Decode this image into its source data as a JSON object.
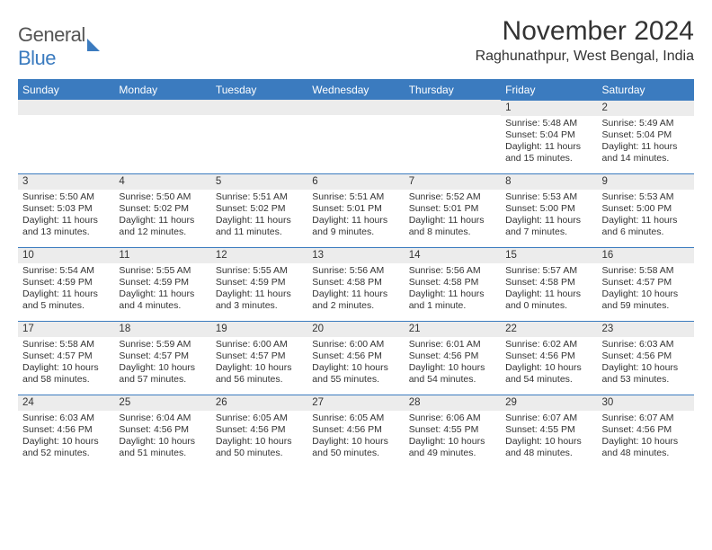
{
  "logo": {
    "part1": "General",
    "part2": "Blue"
  },
  "title": "November 2024",
  "subtitle": "Raghunathpur, West Bengal, India",
  "dayNames": [
    "Sunday",
    "Monday",
    "Tuesday",
    "Wednesday",
    "Thursday",
    "Friday",
    "Saturday"
  ],
  "colors": {
    "accent": "#3b7bbf",
    "headerRowBg": "#ececec",
    "text": "#333333",
    "background": "#ffffff"
  },
  "font": {
    "family": "Arial",
    "daynum_size": 11.5,
    "body_size": 10.5,
    "title_size": 30,
    "subtitle_size": 16
  },
  "weeks": [
    [
      {
        "n": "",
        "lines": []
      },
      {
        "n": "",
        "lines": []
      },
      {
        "n": "",
        "lines": []
      },
      {
        "n": "",
        "lines": []
      },
      {
        "n": "",
        "lines": []
      },
      {
        "n": "1",
        "lines": [
          "Sunrise: 5:48 AM",
          "Sunset: 5:04 PM",
          "Daylight: 11 hours",
          "and 15 minutes."
        ]
      },
      {
        "n": "2",
        "lines": [
          "Sunrise: 5:49 AM",
          "Sunset: 5:04 PM",
          "Daylight: 11 hours",
          "and 14 minutes."
        ]
      }
    ],
    [
      {
        "n": "3",
        "lines": [
          "Sunrise: 5:50 AM",
          "Sunset: 5:03 PM",
          "Daylight: 11 hours",
          "and 13 minutes."
        ]
      },
      {
        "n": "4",
        "lines": [
          "Sunrise: 5:50 AM",
          "Sunset: 5:02 PM",
          "Daylight: 11 hours",
          "and 12 minutes."
        ]
      },
      {
        "n": "5",
        "lines": [
          "Sunrise: 5:51 AM",
          "Sunset: 5:02 PM",
          "Daylight: 11 hours",
          "and 11 minutes."
        ]
      },
      {
        "n": "6",
        "lines": [
          "Sunrise: 5:51 AM",
          "Sunset: 5:01 PM",
          "Daylight: 11 hours",
          "and 9 minutes."
        ]
      },
      {
        "n": "7",
        "lines": [
          "Sunrise: 5:52 AM",
          "Sunset: 5:01 PM",
          "Daylight: 11 hours",
          "and 8 minutes."
        ]
      },
      {
        "n": "8",
        "lines": [
          "Sunrise: 5:53 AM",
          "Sunset: 5:00 PM",
          "Daylight: 11 hours",
          "and 7 minutes."
        ]
      },
      {
        "n": "9",
        "lines": [
          "Sunrise: 5:53 AM",
          "Sunset: 5:00 PM",
          "Daylight: 11 hours",
          "and 6 minutes."
        ]
      }
    ],
    [
      {
        "n": "10",
        "lines": [
          "Sunrise: 5:54 AM",
          "Sunset: 4:59 PM",
          "Daylight: 11 hours",
          "and 5 minutes."
        ]
      },
      {
        "n": "11",
        "lines": [
          "Sunrise: 5:55 AM",
          "Sunset: 4:59 PM",
          "Daylight: 11 hours",
          "and 4 minutes."
        ]
      },
      {
        "n": "12",
        "lines": [
          "Sunrise: 5:55 AM",
          "Sunset: 4:59 PM",
          "Daylight: 11 hours",
          "and 3 minutes."
        ]
      },
      {
        "n": "13",
        "lines": [
          "Sunrise: 5:56 AM",
          "Sunset: 4:58 PM",
          "Daylight: 11 hours",
          "and 2 minutes."
        ]
      },
      {
        "n": "14",
        "lines": [
          "Sunrise: 5:56 AM",
          "Sunset: 4:58 PM",
          "Daylight: 11 hours",
          "and 1 minute."
        ]
      },
      {
        "n": "15",
        "lines": [
          "Sunrise: 5:57 AM",
          "Sunset: 4:58 PM",
          "Daylight: 11 hours",
          "and 0 minutes."
        ]
      },
      {
        "n": "16",
        "lines": [
          "Sunrise: 5:58 AM",
          "Sunset: 4:57 PM",
          "Daylight: 10 hours",
          "and 59 minutes."
        ]
      }
    ],
    [
      {
        "n": "17",
        "lines": [
          "Sunrise: 5:58 AM",
          "Sunset: 4:57 PM",
          "Daylight: 10 hours",
          "and 58 minutes."
        ]
      },
      {
        "n": "18",
        "lines": [
          "Sunrise: 5:59 AM",
          "Sunset: 4:57 PM",
          "Daylight: 10 hours",
          "and 57 minutes."
        ]
      },
      {
        "n": "19",
        "lines": [
          "Sunrise: 6:00 AM",
          "Sunset: 4:57 PM",
          "Daylight: 10 hours",
          "and 56 minutes."
        ]
      },
      {
        "n": "20",
        "lines": [
          "Sunrise: 6:00 AM",
          "Sunset: 4:56 PM",
          "Daylight: 10 hours",
          "and 55 minutes."
        ]
      },
      {
        "n": "21",
        "lines": [
          "Sunrise: 6:01 AM",
          "Sunset: 4:56 PM",
          "Daylight: 10 hours",
          "and 54 minutes."
        ]
      },
      {
        "n": "22",
        "lines": [
          "Sunrise: 6:02 AM",
          "Sunset: 4:56 PM",
          "Daylight: 10 hours",
          "and 54 minutes."
        ]
      },
      {
        "n": "23",
        "lines": [
          "Sunrise: 6:03 AM",
          "Sunset: 4:56 PM",
          "Daylight: 10 hours",
          "and 53 minutes."
        ]
      }
    ],
    [
      {
        "n": "24",
        "lines": [
          "Sunrise: 6:03 AM",
          "Sunset: 4:56 PM",
          "Daylight: 10 hours",
          "and 52 minutes."
        ]
      },
      {
        "n": "25",
        "lines": [
          "Sunrise: 6:04 AM",
          "Sunset: 4:56 PM",
          "Daylight: 10 hours",
          "and 51 minutes."
        ]
      },
      {
        "n": "26",
        "lines": [
          "Sunrise: 6:05 AM",
          "Sunset: 4:56 PM",
          "Daylight: 10 hours",
          "and 50 minutes."
        ]
      },
      {
        "n": "27",
        "lines": [
          "Sunrise: 6:05 AM",
          "Sunset: 4:56 PM",
          "Daylight: 10 hours",
          "and 50 minutes."
        ]
      },
      {
        "n": "28",
        "lines": [
          "Sunrise: 6:06 AM",
          "Sunset: 4:55 PM",
          "Daylight: 10 hours",
          "and 49 minutes."
        ]
      },
      {
        "n": "29",
        "lines": [
          "Sunrise: 6:07 AM",
          "Sunset: 4:55 PM",
          "Daylight: 10 hours",
          "and 48 minutes."
        ]
      },
      {
        "n": "30",
        "lines": [
          "Sunrise: 6:07 AM",
          "Sunset: 4:56 PM",
          "Daylight: 10 hours",
          "and 48 minutes."
        ]
      }
    ]
  ]
}
